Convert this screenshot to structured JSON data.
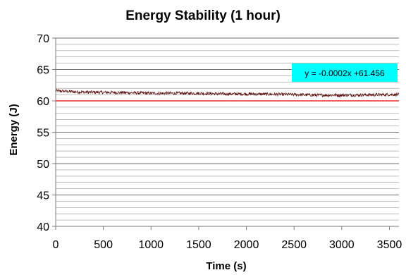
{
  "chart_data": {
    "type": "line",
    "title": "Energy Stability (1 hour)",
    "xlabel": "Time (s)",
    "ylabel": "Energy (J)",
    "xlim": [
      0,
      3600
    ],
    "ylim": [
      40,
      70
    ],
    "x_ticks": [
      0,
      500,
      1000,
      1500,
      2000,
      2500,
      3000,
      3500
    ],
    "y_ticks": [
      40,
      45,
      50,
      55,
      60,
      65,
      70
    ],
    "grid": true,
    "minor_grid_step": 1,
    "series": [
      {
        "type": "line",
        "color": "#5a0f0f",
        "x": [
          0,
          250,
          500,
          750,
          1000,
          1250,
          1500,
          1750,
          2000,
          2250,
          2500,
          2750,
          3000,
          3250,
          3500,
          3600
        ],
        "y": [
          61.6,
          61.4,
          61.35,
          61.3,
          61.2,
          61.2,
          61.2,
          61.1,
          61.1,
          61.05,
          61.0,
          60.9,
          60.9,
          60.95,
          61.0,
          61.0
        ],
        "noise_amplitude": 0.25
      },
      {
        "type": "line",
        "color": "#e8281e",
        "x": [
          0,
          3600
        ],
        "y": [
          60,
          60
        ]
      }
    ],
    "annotation": {
      "text": "y = -0.0002x +61.456",
      "background": "#00ffff"
    }
  }
}
